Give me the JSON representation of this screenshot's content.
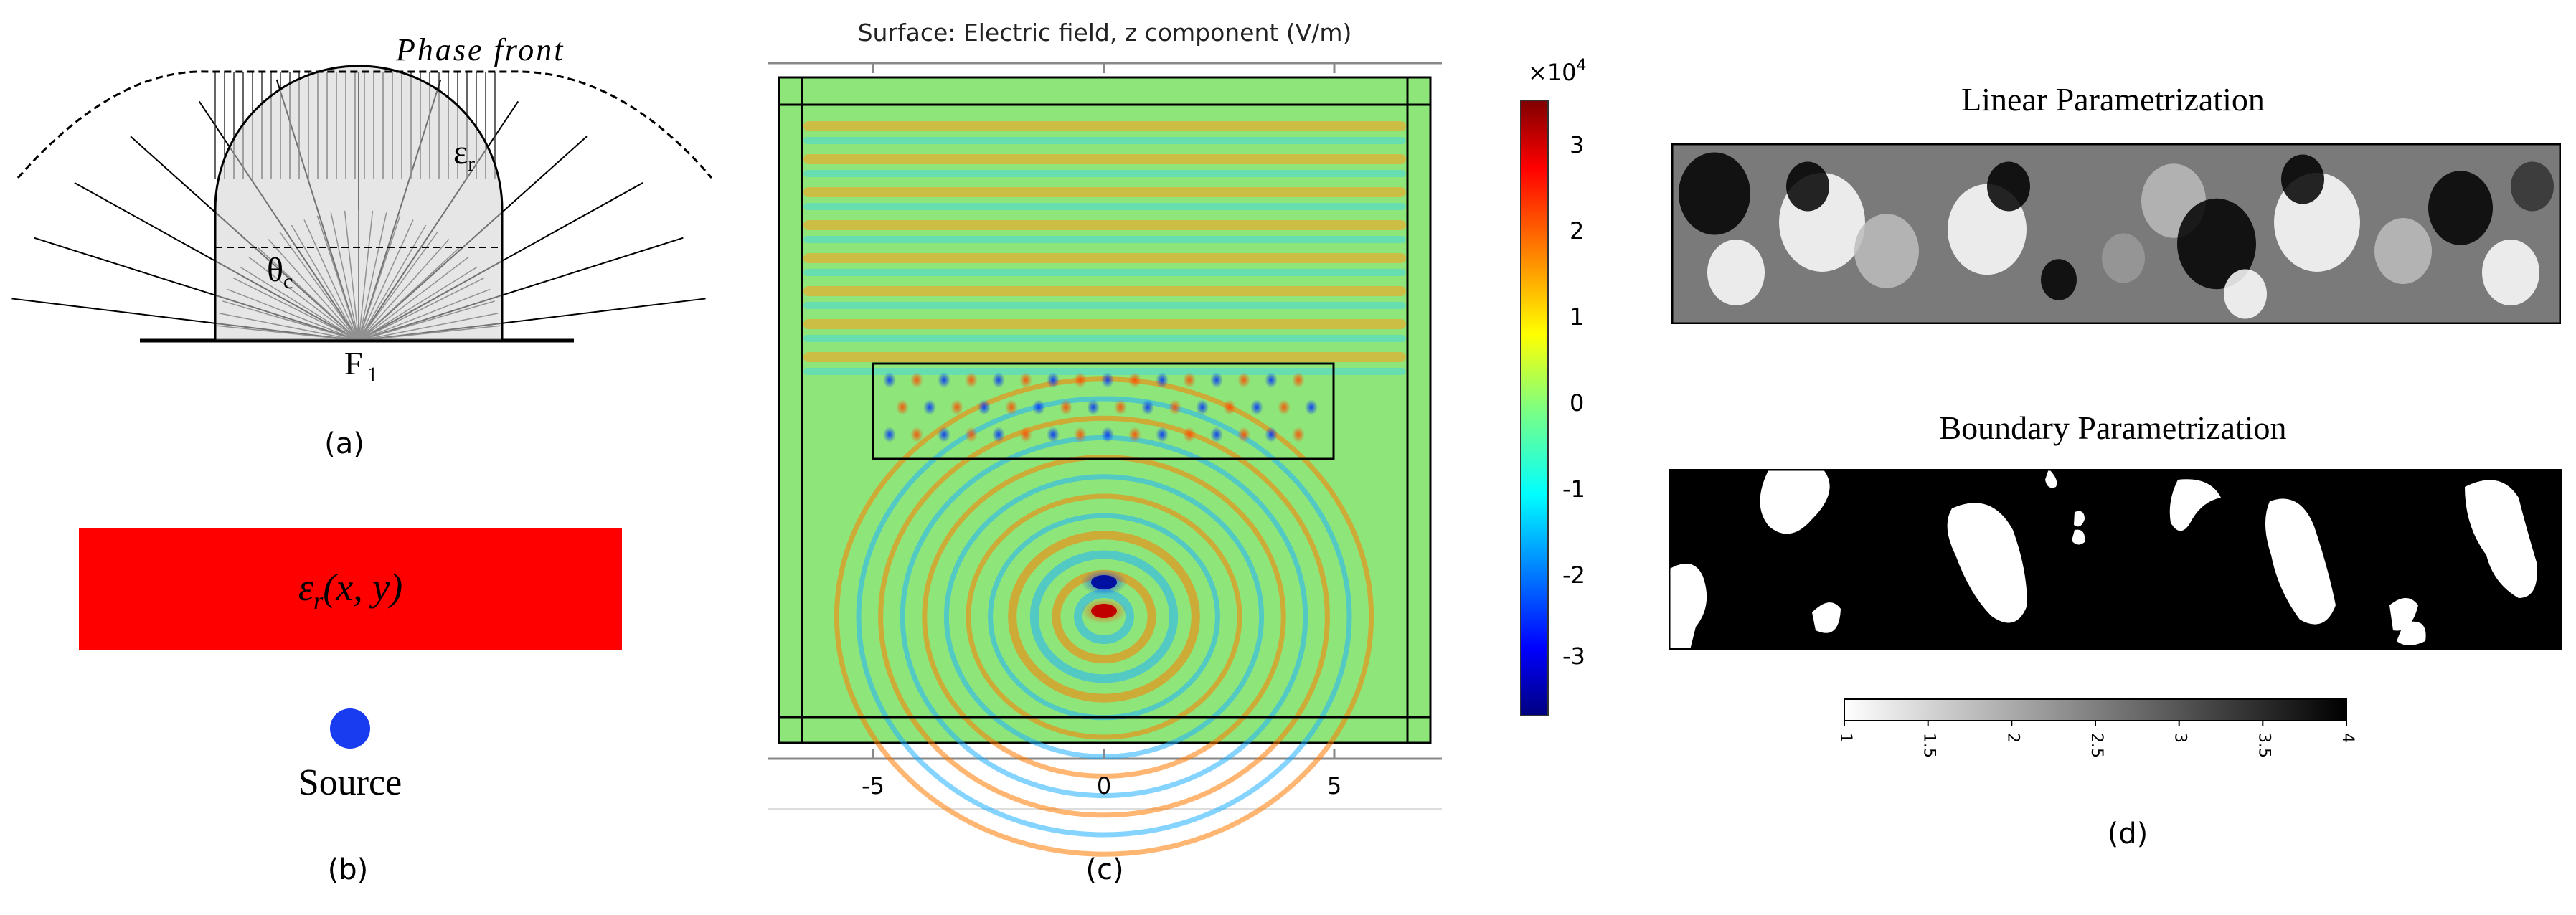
{
  "panel_a": {
    "phase_front_label": "Phase front",
    "eps_label": "ε",
    "eps_sub": "r",
    "theta_label": "θ",
    "theta_sub": "c",
    "focus_label": "F",
    "focus_sub": "1",
    "caption": "(a)"
  },
  "panel_b": {
    "material_label_main": "ε",
    "material_label_sub": "r",
    "material_label_args": "(x, y)",
    "source_label": "Source",
    "caption": "(b)",
    "colors": {
      "material": "#ff0000",
      "source": "#1a3cf0"
    }
  },
  "panel_c": {
    "title": "Surface: Electric field, z component (V/m)",
    "x_ticks": [
      "-5",
      "0",
      "5"
    ],
    "colorbar_exponent": "×10",
    "colorbar_exponent_power": "4",
    "colorbar_ticks": [
      "3",
      "2",
      "1",
      "0",
      "-1",
      "-2",
      "-3"
    ],
    "caption": "(c)"
  },
  "panel_d": {
    "linear_title": "Linear Parametrization",
    "boundary_title": "Boundary Parametrization",
    "colorbar_ticks": [
      "1",
      "1.5",
      "2",
      "2.5",
      "3",
      "3.5",
      "4"
    ],
    "caption": "(d)"
  }
}
